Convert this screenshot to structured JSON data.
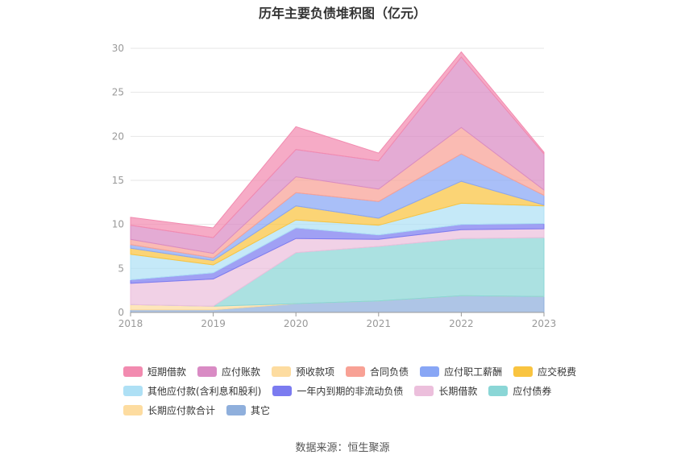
{
  "chart_data": {
    "type": "area",
    "stacked": true,
    "title": "历年主要负债堆积图（亿元）",
    "categories": [
      "2018",
      "2019",
      "2020",
      "2021",
      "2022",
      "2023"
    ],
    "ylim": [
      0,
      30
    ],
    "yticks": [
      0,
      5,
      10,
      15,
      20,
      25,
      30
    ],
    "grid": true,
    "legend_position": "bottom",
    "series": [
      {
        "name": "其它",
        "color": "#8fafdc",
        "values": [
          0.3,
          0.3,
          1.0,
          1.3,
          1.9,
          1.8
        ]
      },
      {
        "name": "长期应付款合计",
        "color": "#fddca0",
        "values": [
          0.6,
          0.4,
          0.0,
          0.0,
          0.0,
          0.0
        ]
      },
      {
        "name": "应付债券",
        "color": "#8ad6d6",
        "values": [
          0.0,
          0.0,
          5.8,
          6.2,
          6.5,
          6.7
        ]
      },
      {
        "name": "长期借款",
        "color": "#ecbfdc",
        "values": [
          2.4,
          3.1,
          1.6,
          0.8,
          1.0,
          1.0
        ]
      },
      {
        "name": "一年内到期的非流动负债",
        "color": "#7b7bf0",
        "values": [
          0.4,
          0.7,
          1.2,
          0.5,
          0.6,
          0.6
        ]
      },
      {
        "name": "其他应付款(含利息和股利)",
        "color": "#aee0f5",
        "values": [
          2.9,
          0.9,
          0.9,
          1.1,
          2.4,
          2.0
        ]
      },
      {
        "name": "应交税费",
        "color": "#f9c440",
        "values": [
          0.7,
          0.5,
          1.6,
          0.8,
          2.5,
          0.1
        ]
      },
      {
        "name": "应付职工薪酬",
        "color": "#88a6f5",
        "values": [
          0.4,
          0.3,
          1.5,
          1.9,
          3.1,
          1.1
        ]
      },
      {
        "name": "合同负债",
        "color": "#f8a195",
        "values": [
          0.6,
          0.5,
          1.8,
          1.4,
          3.0,
          0.6
        ]
      },
      {
        "name": "预收款项",
        "color": "#fddca0",
        "values": [
          0.0,
          0.0,
          0.0,
          0.0,
          0.0,
          0.0
        ]
      },
      {
        "name": "应付账款",
        "color": "#d98bc4",
        "values": [
          1.6,
          1.8,
          3.1,
          3.2,
          8.0,
          4.1
        ]
      },
      {
        "name": "短期借款",
        "color": "#f28bb0",
        "values": [
          0.9,
          1.1,
          2.6,
          0.9,
          0.6,
          0.2
        ]
      }
    ]
  },
  "legend": {
    "rows": [
      [
        {
          "label": "短期借款",
          "color": "#f28bb0"
        },
        {
          "label": "应付账款",
          "color": "#d98bc4"
        },
        {
          "label": "预收款项",
          "color": "#fddca0"
        },
        {
          "label": "合同负债",
          "color": "#f8a195"
        },
        {
          "label": "应付职工薪酬",
          "color": "#88a6f5"
        },
        {
          "label": "应交税费",
          "color": "#f9c440"
        }
      ],
      [
        {
          "label": "其他应付款(含利息和股利)",
          "color": "#aee0f5"
        },
        {
          "label": "一年内到期的非流动负债",
          "color": "#7b7bf0"
        },
        {
          "label": "长期借款",
          "color": "#ecbfdc"
        },
        {
          "label": "应付债券",
          "color": "#8ad6d6"
        }
      ],
      [
        {
          "label": "长期应付款合计",
          "color": "#fddca0"
        },
        {
          "label": "其它",
          "color": "#8fafdc"
        }
      ]
    ]
  },
  "source": "数据来源：恒生聚源"
}
